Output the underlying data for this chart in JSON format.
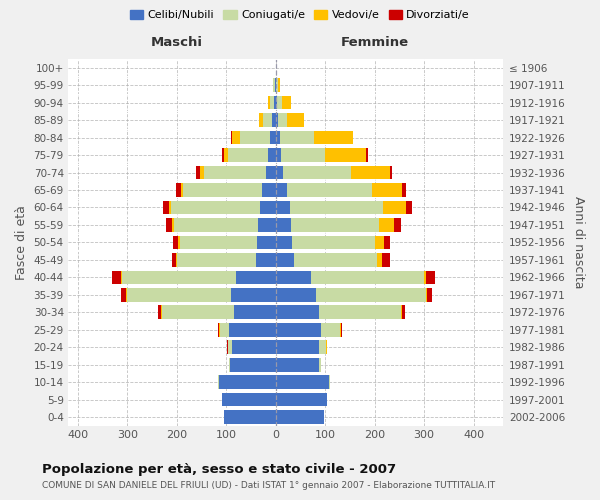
{
  "age_groups": [
    "100+",
    "95-99",
    "90-94",
    "85-89",
    "80-84",
    "75-79",
    "70-74",
    "65-69",
    "60-64",
    "55-59",
    "50-54",
    "45-49",
    "40-44",
    "35-39",
    "30-34",
    "25-29",
    "20-24",
    "15-19",
    "10-14",
    "5-9",
    "0-4"
  ],
  "birth_years": [
    "≤ 1906",
    "1907-1911",
    "1912-1916",
    "1917-1921",
    "1922-1926",
    "1927-1931",
    "1932-1936",
    "1937-1941",
    "1942-1946",
    "1947-1951",
    "1952-1956",
    "1957-1961",
    "1962-1966",
    "1967-1971",
    "1972-1976",
    "1977-1981",
    "1982-1986",
    "1987-1991",
    "1992-1996",
    "1997-2001",
    "2002-2006"
  ],
  "males": {
    "celibi": [
      0,
      2,
      4,
      8,
      12,
      15,
      20,
      28,
      32,
      35,
      38,
      40,
      80,
      90,
      85,
      95,
      88,
      92,
      115,
      108,
      105
    ],
    "coniugati": [
      0,
      3,
      8,
      18,
      60,
      82,
      125,
      160,
      180,
      170,
      155,
      160,
      230,
      210,
      145,
      18,
      8,
      2,
      2,
      0,
      0
    ],
    "vedovi": [
      0,
      1,
      4,
      8,
      16,
      8,
      8,
      4,
      4,
      4,
      4,
      2,
      2,
      2,
      2,
      2,
      1,
      0,
      0,
      0,
      0
    ],
    "divorziati": [
      0,
      0,
      0,
      0,
      2,
      4,
      8,
      10,
      12,
      13,
      10,
      7,
      18,
      10,
      7,
      2,
      1,
      0,
      0,
      0,
      0
    ]
  },
  "females": {
    "nubili": [
      0,
      1,
      2,
      4,
      8,
      10,
      15,
      22,
      28,
      30,
      33,
      36,
      72,
      82,
      88,
      92,
      88,
      88,
      108,
      103,
      98
    ],
    "coniugate": [
      0,
      3,
      10,
      18,
      70,
      90,
      138,
      172,
      188,
      178,
      168,
      168,
      228,
      222,
      165,
      38,
      14,
      4,
      2,
      0,
      0
    ],
    "vedove": [
      0,
      4,
      18,
      35,
      78,
      82,
      78,
      62,
      48,
      32,
      18,
      10,
      4,
      2,
      2,
      2,
      1,
      0,
      0,
      0,
      0
    ],
    "divorziate": [
      0,
      0,
      0,
      0,
      0,
      4,
      4,
      8,
      12,
      13,
      13,
      18,
      18,
      10,
      7,
      2,
      1,
      0,
      0,
      0,
      0
    ]
  },
  "colors": {
    "celibi": "#4472C4",
    "coniugati": "#c8dba4",
    "vedovi": "#ffc000",
    "divorziati": "#cc0000"
  },
  "xlim": [
    -420,
    460
  ],
  "xticks": [
    -400,
    -300,
    -200,
    -100,
    0,
    100,
    200,
    300,
    400
  ],
  "xtick_labels": [
    "400",
    "300",
    "200",
    "100",
    "0",
    "100",
    "200",
    "300",
    "400"
  ],
  "title": "Popolazione per età, sesso e stato civile - 2007",
  "subtitle": "COMUNE DI SAN DANIELE DEL FRIULI (UD) - Dati ISTAT 1° gennaio 2007 - Elaborazione TUTTITALIA.IT",
  "ylabel_left": "Fasce di età",
  "ylabel_right": "Anni di nascita",
  "legend_labels": [
    "Celibi/Nubili",
    "Coniugati/e",
    "Vedovi/e",
    "Divorziati/e"
  ],
  "maschi_label": "Maschi",
  "femmine_label": "Femmine",
  "bg_color": "#f0f0f0",
  "plot_bg_color": "#ffffff"
}
